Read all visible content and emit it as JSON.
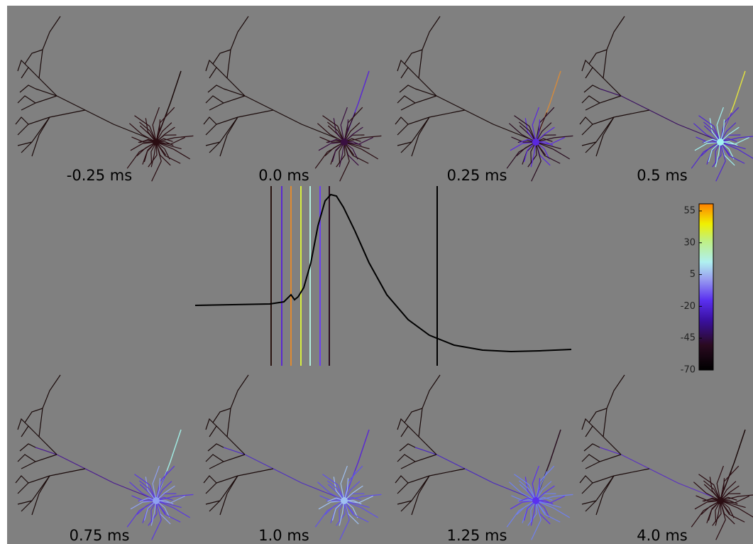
{
  "panels": [
    {
      "label": "-0.25 ms"
    },
    {
      "label": "0.0 ms"
    },
    {
      "label": "0.25 ms"
    },
    {
      "label": "0.5 ms"
    },
    {
      "label": "0.75 ms"
    },
    {
      "label": "1.0 ms"
    },
    {
      "label": "1.25 ms"
    },
    {
      "label": "4.0 ms"
    }
  ],
  "colorbar": {
    "lim": [
      -70,
      55
    ],
    "ticks": [
      55,
      30,
      5,
      -20,
      -45,
      -70
    ]
  }
}
